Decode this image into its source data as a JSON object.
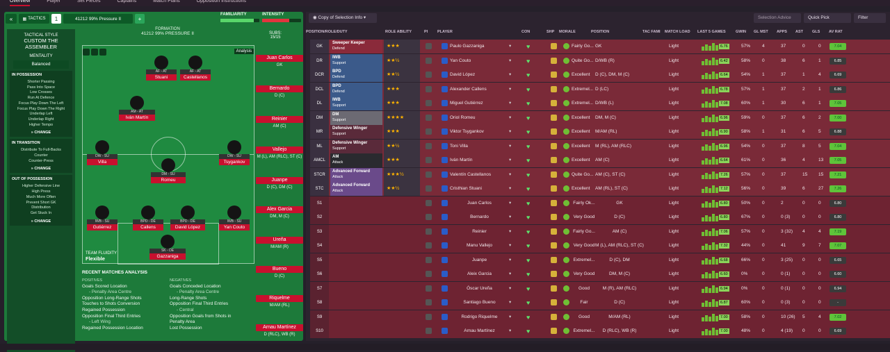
{
  "topnav": [
    "Overview",
    "Player",
    "Set Pieces",
    "Captains",
    "Match Plans",
    "Opposition Instructions"
  ],
  "tactic": {
    "tactics_label": "TACTICS",
    "slot": "1",
    "name": "41212 99% Pressure II",
    "familiarity_label": "FAMILIARITY",
    "intensity_label": "INTENSITY",
    "familiarity": 0.85,
    "intensity": 0.7,
    "style_title": "TACTICAL STYLE",
    "style_name": "CUSTOM THE ASSEMBLER",
    "mentality_label": "MENTALITY",
    "mentality": "Balanced",
    "in_possession": {
      "title": "IN POSSESSION",
      "items": [
        "Shorter Passing",
        "Pass Into Space",
        "Low Crosses",
        "Run At Defence",
        "Focus Play Down The Left",
        "Focus Play Down The Right",
        "Underlap Left",
        "Underlap Right",
        "Higher Tempo"
      ]
    },
    "in_transition": {
      "title": "IN TRANSITION",
      "items": [
        "Distribute To Full-Backs",
        "Counter",
        "Counter-Press"
      ]
    },
    "out_possession": {
      "title": "OUT OF POSSESSION",
      "items": [
        "Higher Defensive Line",
        "High Press",
        "Much More Often",
        "Prevent Short GK",
        "Distribution",
        "Get Stuck In"
      ]
    },
    "change": "CHANGE",
    "formation_label": "FORMATION",
    "formation_name": "41212 99% PRESSURE II",
    "analysis": "Analysis",
    "subs_label": "SUBS:",
    "subs_count": "15/15",
    "fluidity_label": "TEAM FLUIDITY",
    "fluidity": "Flexible"
  },
  "pitch_players": [
    {
      "role": "AF - AT",
      "name": "Stuani"
    },
    {
      "role": "AF - AT",
      "name": "Castellanos"
    },
    {
      "role": "AM - AT",
      "name": "Iván Martín"
    },
    {
      "role": "DW - SU",
      "name": "Villa"
    },
    {
      "role": "DW - SU",
      "name": "Tsygankov"
    },
    {
      "role": "DM - SU",
      "name": "Romeu"
    },
    {
      "role": "IWB - SU",
      "name": "Gutiérrez"
    },
    {
      "role": "BPD - DE",
      "name": "Callens"
    },
    {
      "role": "BPD - DE",
      "name": "David López"
    },
    {
      "role": "IWB - SU",
      "name": "Yan Couto"
    },
    {
      "role": "SK - DE",
      "name": "Gazzaniga"
    }
  ],
  "subs": [
    {
      "name": "Juan Carlos",
      "pos": "GK"
    },
    {
      "name": "Bernardo",
      "pos": "D (C)"
    },
    {
      "name": "Reinier",
      "pos": "AM (C)"
    },
    {
      "name": "Vallejo",
      "pos": "M (L), AM (RLC), ST (C)"
    },
    {
      "name": "Juanpe",
      "pos": "D (C), DM (C)"
    },
    {
      "name": "Alex Garcia",
      "pos": "DM, M (C)"
    },
    {
      "name": "Ureña",
      "pos": "M/AM (R)"
    },
    {
      "name": "Bueno",
      "pos": "D (C)"
    },
    {
      "name": "Riquelme",
      "pos": "M/AM (RL)"
    },
    {
      "name": "Arnau Martínez",
      "pos": "D (RLC), WB (R)"
    }
  ],
  "rma": {
    "title": "RECENT MATCHES ANALYSIS",
    "pos_label": "POSITIVES",
    "neg_label": "NEGATIVES",
    "positives": [
      "Goals Scored Location",
      "- Penalty Area Centre",
      "Opposition Long-Range Shots",
      "Touches to Shots Conversion",
      "Regained Possession",
      "Opposition Final Third Entries",
      "- Left Wing",
      "Regained Possession Location"
    ],
    "negatives": [
      "Goals Conceded Location",
      "- Penalty Area Centre",
      "Long-Range Shots",
      "Opposition Final Third Entries",
      "- Central",
      "Opposition Goals from Shots in",
      "Penalty Area",
      "Lost Possession"
    ]
  },
  "right": {
    "selection": "Copy of Selection Info",
    "advice": "Selection Advice",
    "quickpick": "Quick Pick",
    "filter": "Filter",
    "headers": [
      "POSITION/ROLE/DUTY",
      "ROLE ABILITY",
      "PI",
      "PLAYER",
      "CON",
      "SHP",
      "MORALE",
      "POSITION",
      "TAC FAMI",
      "MATCH LOAD",
      "LAST 5 GAMES",
      "GWIN",
      "GL MST",
      "APPS",
      "AST",
      "GLS",
      "AV RAT"
    ]
  },
  "rows": [
    {
      "pos": "GK",
      "role": "Sweeper Keeper",
      "duty": "Defend",
      "stars": "★★★",
      "player": "Paulo Gazzaniga",
      "morale": "Fairly Go...",
      "position": "GK",
      "load": "Light",
      "l5": "6.76",
      "gwin": "57%",
      "glmst": "4",
      "apps": "37",
      "ast": "0",
      "gls": "0",
      "av": "7.04",
      "hi": true,
      "color": "#8a2a3a"
    },
    {
      "pos": "DR",
      "role": "IWB",
      "duty": "Support",
      "stars": "★★½",
      "player": "Yan Couto",
      "morale": "Quite Go...",
      "position": "D/WB (R)",
      "load": "Light",
      "l5": "6.42",
      "gwin": "58%",
      "glmst": "0",
      "apps": "38",
      "ast": "6",
      "gls": "1",
      "av": "6.85",
      "hi": false,
      "color": "#3b5a8a"
    },
    {
      "pos": "DCR",
      "role": "BPD",
      "duty": "Defend",
      "stars": "★★½",
      "player": "David López",
      "morale": "Excellent",
      "position": "D (C), DM, M (C)",
      "load": "Light",
      "l5": "6.64",
      "gwin": "54%",
      "glmst": "1",
      "apps": "37",
      "ast": "1",
      "gls": "4",
      "av": "6.69",
      "hi": false,
      "color": "#3b5a8a"
    },
    {
      "pos": "DCL",
      "role": "BPD",
      "duty": "Defend",
      "stars": "★★★",
      "player": "Alexander Callens",
      "morale": "Extremel...",
      "position": "D (LC)",
      "load": "Light",
      "l5": "6.78",
      "gwin": "57%",
      "glmst": "1",
      "apps": "37",
      "ast": "2",
      "gls": "1",
      "av": "6.86",
      "hi": false,
      "color": "#3b5a8a"
    },
    {
      "pos": "DL",
      "role": "IWB",
      "duty": "Support",
      "stars": "★★★",
      "player": "Miguel Gutiérrez",
      "morale": "Extremel...",
      "position": "D/WB (L)",
      "load": "Light",
      "l5": "7.08",
      "gwin": "60%",
      "glmst": "1",
      "apps": "30",
      "ast": "6",
      "gls": "1",
      "av": "7.05",
      "hi": true,
      "color": "#3b5a8a"
    },
    {
      "pos": "DM",
      "role": "DM",
      "duty": "Support",
      "stars": "★★★★",
      "player": "Oriol Romeu",
      "morale": "Excellent",
      "position": "DM, M (C)",
      "load": "Light",
      "l5": "6.96",
      "gwin": "59%",
      "glmst": "0",
      "apps": "37",
      "ast": "6",
      "gls": "2",
      "av": "7.00",
      "hi": true,
      "color": "#6c6a73"
    },
    {
      "pos": "MR",
      "role": "Defensive Winger",
      "duty": "Support",
      "stars": "★★★",
      "player": "Viktor Tsygankov",
      "morale": "Excellent",
      "position": "M/AM (RL)",
      "load": "Light",
      "l5": "6.90",
      "gwin": "58%",
      "glmst": "1",
      "apps": "31",
      "ast": "6",
      "gls": "5",
      "av": "6.88",
      "hi": false,
      "color": "#5a2a3a"
    },
    {
      "pos": "ML",
      "role": "Defensive Winger",
      "duty": "Support",
      "stars": "★★½",
      "player": "Toni Villa",
      "morale": "Excellent",
      "position": "M (RL), AM (RLC)",
      "load": "Light",
      "l5": "6.96",
      "gwin": "54%",
      "glmst": "0",
      "apps": "37",
      "ast": "8",
      "gls": "5",
      "av": "7.04",
      "hi": true,
      "color": "#5a2a3a"
    },
    {
      "pos": "AMCL",
      "role": "AM",
      "duty": "Attack",
      "stars": "★★★",
      "player": "Iván Martín",
      "morale": "Excellent",
      "position": "AM (C)",
      "load": "Light",
      "l5": "6.64",
      "gwin": "61%",
      "glmst": "0",
      "apps": "36",
      "ast": "4",
      "gls": "13",
      "av": "7.05",
      "hi": true,
      "color": "#2a2a2f"
    },
    {
      "pos": "STCR",
      "role": "Advanced Forward",
      "duty": "Attack",
      "stars": "★★★½",
      "player": "Valentín Castellanos",
      "morale": "Quite Go...",
      "position": "AM (C), ST (C)",
      "load": "Light",
      "l5": "7.26",
      "gwin": "57%",
      "glmst": "0",
      "apps": "37",
      "ast": "15",
      "gls": "15",
      "av": "7.21",
      "hi": true,
      "color": "#6a4a8a"
    },
    {
      "pos": "STC",
      "role": "Advanced Forward",
      "duty": "Attack",
      "stars": "★★½",
      "player": "Cristhian Stuani",
      "morale": "Excellent",
      "position": "AM (RL), ST (C)",
      "load": "Light",
      "l5": "7.12",
      "gwin": "56%",
      "glmst": "0",
      "apps": "39",
      "ast": "6",
      "gls": "27",
      "av": "7.26",
      "hi": true,
      "color": "#6a4a8a"
    },
    {
      "pos": "S1",
      "player": "Juan Carlos",
      "morale": "Fairly Ok...",
      "position": "GK",
      "load": "Light",
      "l5": "6.80",
      "gwin": "50%",
      "glmst": "0",
      "apps": "2",
      "ast": "0",
      "gls": "0",
      "av": "6.80",
      "hi": false
    },
    {
      "pos": "S2",
      "player": "Bernardo",
      "morale": "Very Good",
      "position": "D (C)",
      "load": "Light",
      "l5": "6.80",
      "gwin": "67%",
      "glmst": "0",
      "apps": "0 (3)",
      "ast": "0",
      "gls": "0",
      "av": "6.80",
      "hi": false
    },
    {
      "pos": "S3",
      "player": "Reinier",
      "morale": "Fairly Go...",
      "position": "AM (C)",
      "load": "Light",
      "l5": "7.06",
      "gwin": "57%",
      "glmst": "0",
      "apps": "3 (32)",
      "ast": "4",
      "gls": "4",
      "av": "7.19",
      "hi": true
    },
    {
      "pos": "S4",
      "player": "Manu Vallejo",
      "morale": "Very Good",
      "position": "M (L), AM (RLC), ST (C)",
      "load": "Light",
      "l5": "7.32",
      "gwin": "44%",
      "glmst": "0",
      "apps": "41",
      "ast": "9",
      "gls": "7",
      "av": "7.07",
      "hi": true
    },
    {
      "pos": "S5",
      "player": "Juanpe",
      "morale": "Extremel...",
      "position": "D (C), DM",
      "load": "Light",
      "l5": "6.68",
      "gwin": "66%",
      "glmst": "0",
      "apps": "3 (25)",
      "ast": "0",
      "gls": "0",
      "av": "6.65",
      "hi": false
    },
    {
      "pos": "S6",
      "player": "Aleix Garcia",
      "morale": "Very Good",
      "position": "DM, M (C)",
      "load": "Light",
      "l5": "6.60",
      "gwin": "0%",
      "glmst": "0",
      "apps": "0 (1)",
      "ast": "0",
      "gls": "0",
      "av": "6.60",
      "hi": false
    },
    {
      "pos": "S7",
      "player": "Óscar Ureña",
      "morale": "Good",
      "position": "M (R), AM (RLC)",
      "load": "Light",
      "l5": "6.94",
      "gwin": "0%",
      "glmst": "0",
      "apps": "0 (1)",
      "ast": "0",
      "gls": "0",
      "av": "6.94",
      "hi": false
    },
    {
      "pos": "S8",
      "player": "Santiago Bueno",
      "morale": "Fair",
      "position": "D (C)",
      "load": "Light",
      "l5": "6.87",
      "gwin": "60%",
      "glmst": "0",
      "apps": "0 (3)",
      "ast": "0",
      "gls": "0",
      "av": "-",
      "hi": false
    },
    {
      "pos": "S9",
      "player": "Rodrigo Riquelme",
      "morale": "Good",
      "position": "M/AM (RL)",
      "load": "Light",
      "l5": "7.00",
      "gwin": "58%",
      "glmst": "0",
      "apps": "10 (26)",
      "ast": "5",
      "gls": "4",
      "av": "7.02",
      "hi": true
    },
    {
      "pos": "S10",
      "player": "Arnau Martínez",
      "morale": "Extremel...",
      "position": "D (RLC), WB (R)",
      "load": "Light",
      "l5": "7.00",
      "gwin": "48%",
      "glmst": "0",
      "apps": "4 (19)",
      "ast": "0",
      "gls": "0",
      "av": "6.69",
      "hi": false
    }
  ]
}
